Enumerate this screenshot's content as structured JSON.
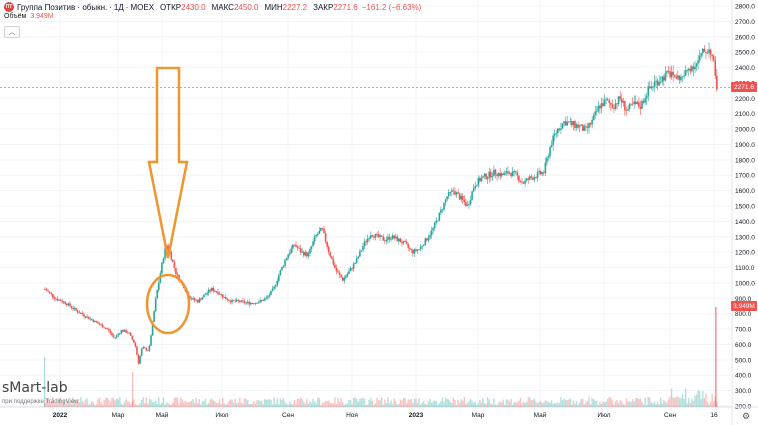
{
  "header": {
    "symbol": "Группа Позитив · обыкн.",
    "interval": "1Д",
    "exchange": "MOEX",
    "logo_text": "ПТ",
    "open_label": "ОТКР",
    "open_value": "2430.0",
    "high_label": "МАКС",
    "high_value": "2450.0",
    "low_label": "МИН",
    "low_value": "2227.2",
    "close_label": "ЗАКР",
    "close_value": "2271.6",
    "change": "−161.2 (−6.63%)"
  },
  "volume_legend": {
    "label": "Объём",
    "value": "3.949M"
  },
  "brand": {
    "name": "sMart-lab",
    "sub": "при поддержке TradingView"
  },
  "price_tag": "2271.6",
  "volume_tag": "3.949M",
  "colors": {
    "up": "#26a69a",
    "down": "#ef5350",
    "annotation": "#f0962e",
    "grid": "#f0f3fa"
  },
  "icons": {
    "settings": "gear-icon",
    "collapse": "chevron-up-icon"
  },
  "chart_data": {
    "type": "candlestick",
    "y_axis": {
      "ticks": [
        "2800.0",
        "2700.0",
        "2600.0",
        "2500.0",
        "2400.0",
        "2300.0",
        "2200.0",
        "2100.0",
        "2000.0",
        "1900.0",
        "1800.0",
        "1700.0",
        "1600.0",
        "1500.0",
        "1400.0",
        "1300.0",
        "1200.0",
        "1100.0",
        "1000.0",
        "900.0",
        "800.0",
        "700.0",
        "600.0",
        "500.0",
        "400.0",
        "300.0",
        "200.0"
      ],
      "range": [
        200,
        2800
      ]
    },
    "x_axis": {
      "ticks": [
        "2022",
        "Мар",
        "Май",
        "Июл",
        "Сен",
        "Ноя",
        "2023",
        "Мар",
        "Май",
        "Июл",
        "Сен",
        "16"
      ]
    },
    "last_price": 2271.6,
    "annotation": "arrow pointing to circled area around May 2022",
    "price_path": [
      [
        0,
        960
      ],
      [
        3,
        900
      ],
      [
        6,
        870
      ],
      [
        9,
        820
      ],
      [
        12,
        780
      ],
      [
        15,
        740
      ],
      [
        18,
        700
      ],
      [
        20,
        640
      ],
      [
        22,
        690
      ],
      [
        24,
        680
      ],
      [
        26,
        600
      ],
      [
        27,
        480
      ],
      [
        28,
        580
      ],
      [
        30,
        560
      ],
      [
        32,
        900
      ],
      [
        34,
        1150
      ],
      [
        35,
        1250
      ],
      [
        36,
        1200
      ],
      [
        38,
        1050
      ],
      [
        40,
        980
      ],
      [
        42,
        900
      ],
      [
        44,
        880
      ],
      [
        46,
        920
      ],
      [
        48,
        960
      ],
      [
        50,
        940
      ],
      [
        52,
        900
      ],
      [
        54,
        880
      ],
      [
        56,
        880
      ],
      [
        58,
        870
      ],
      [
        60,
        870
      ],
      [
        62,
        880
      ],
      [
        64,
        900
      ],
      [
        66,
        960
      ],
      [
        68,
        1080
      ],
      [
        70,
        1180
      ],
      [
        72,
        1250
      ],
      [
        74,
        1200
      ],
      [
        76,
        1180
      ],
      [
        78,
        1300
      ],
      [
        80,
        1350
      ],
      [
        82,
        1200
      ],
      [
        84,
        1080
      ],
      [
        86,
        1020
      ],
      [
        88,
        1080
      ],
      [
        90,
        1150
      ],
      [
        92,
        1250
      ],
      [
        94,
        1320
      ],
      [
        96,
        1300
      ],
      [
        98,
        1280
      ],
      [
        100,
        1300
      ],
      [
        102,
        1280
      ],
      [
        104,
        1250
      ],
      [
        106,
        1200
      ],
      [
        108,
        1220
      ],
      [
        110,
        1280
      ],
      [
        112,
        1350
      ],
      [
        114,
        1450
      ],
      [
        116,
        1560
      ],
      [
        118,
        1600
      ],
      [
        120,
        1550
      ],
      [
        122,
        1500
      ],
      [
        124,
        1640
      ],
      [
        126,
        1680
      ],
      [
        128,
        1700
      ],
      [
        130,
        1720
      ],
      [
        132,
        1700
      ],
      [
        134,
        1720
      ],
      [
        136,
        1700
      ],
      [
        138,
        1650
      ],
      [
        140,
        1680
      ],
      [
        142,
        1700
      ],
      [
        144,
        1720
      ],
      [
        146,
        1900
      ],
      [
        148,
        2000
      ],
      [
        150,
        2050
      ],
      [
        152,
        2030
      ],
      [
        154,
        2020
      ],
      [
        156,
        1990
      ],
      [
        158,
        2050
      ],
      [
        160,
        2150
      ],
      [
        162,
        2180
      ],
      [
        164,
        2150
      ],
      [
        166,
        2200
      ],
      [
        168,
        2120
      ],
      [
        170,
        2160
      ],
      [
        172,
        2150
      ],
      [
        174,
        2250
      ],
      [
        176,
        2300
      ],
      [
        178,
        2330
      ],
      [
        180,
        2360
      ],
      [
        182,
        2340
      ],
      [
        184,
        2330
      ],
      [
        186,
        2400
      ],
      [
        188,
        2420
      ],
      [
        190,
        2500
      ],
      [
        192,
        2520
      ],
      [
        193,
        2430
      ],
      [
        194,
        2271.6
      ]
    ]
  }
}
